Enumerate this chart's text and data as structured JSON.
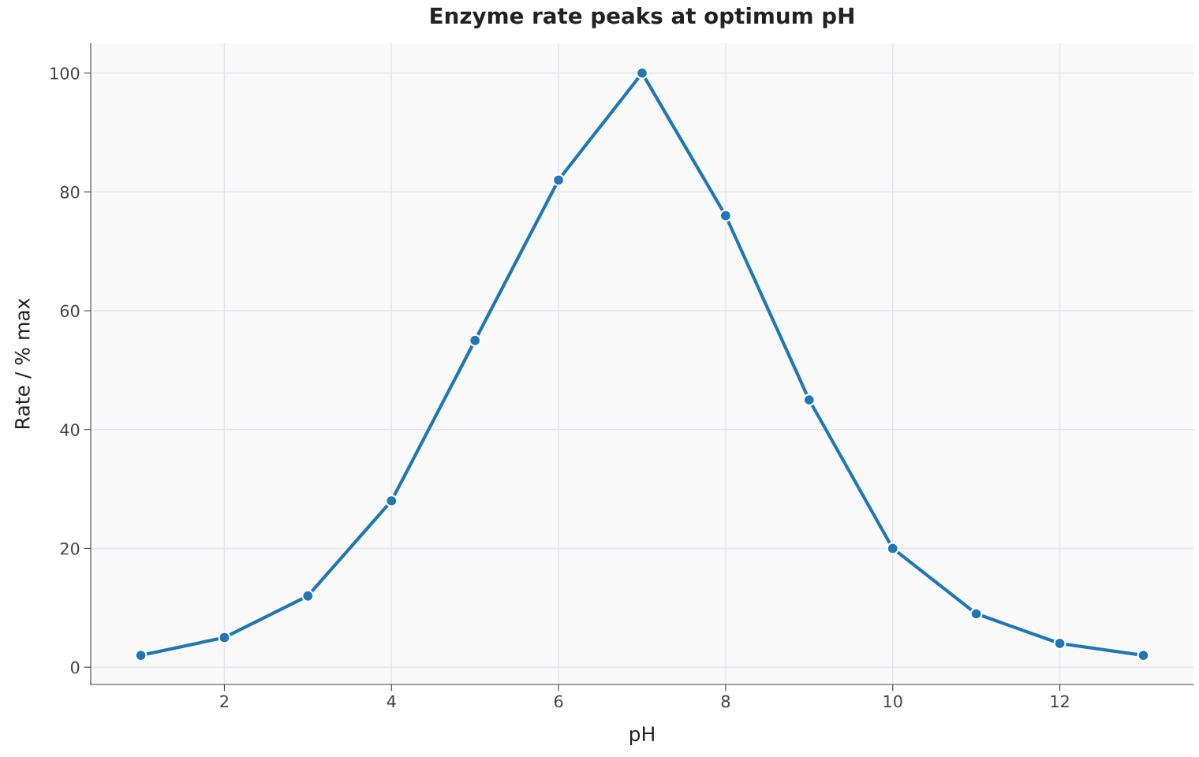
{
  "chart_data": {
    "type": "line",
    "title": "Enzyme rate peaks at optimum pH",
    "xlabel": "pH",
    "ylabel": "Rate / % max",
    "x": [
      1,
      2,
      3,
      4,
      5,
      6,
      7,
      8,
      9,
      10,
      11,
      12,
      13
    ],
    "series": [
      {
        "color": "#1f77b4",
        "values": [
          2,
          5,
          12,
          28,
          55,
          82,
          100,
          76,
          45,
          20,
          9,
          4,
          2
        ]
      }
    ],
    "xlim": [
      0.4,
      13.6
    ],
    "xticks": [
      2,
      4,
      6,
      8,
      10,
      12
    ],
    "ylim": [
      -2.9,
      105
    ],
    "yticks": [
      0,
      20,
      40,
      60,
      80,
      100
    ],
    "grid": true,
    "marker": "circle",
    "line_style": "solid"
  }
}
